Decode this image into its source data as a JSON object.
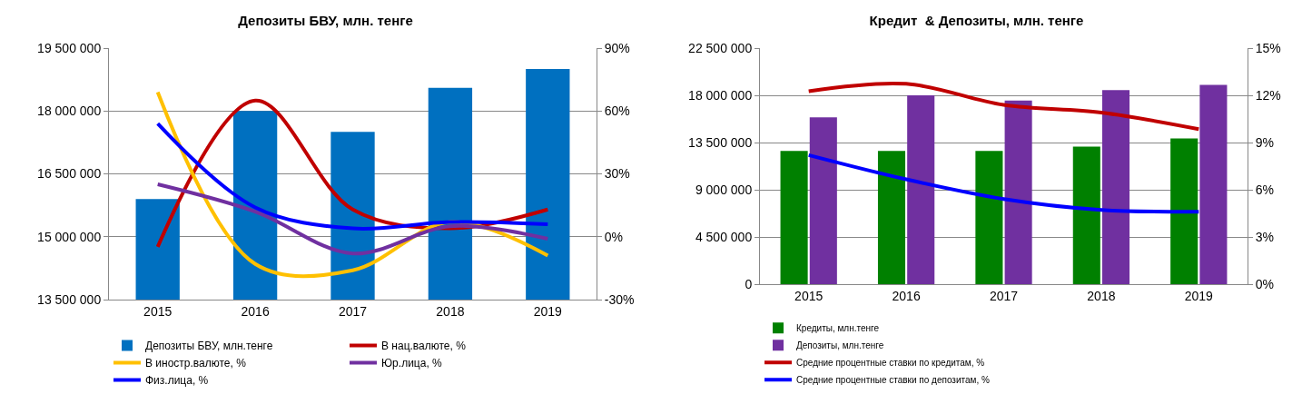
{
  "chart_data": [
    {
      "type": "bar",
      "title": "Депозиты БВУ, млн. тенге",
      "categories": [
        "2015",
        "2016",
        "2017",
        "2018",
        "2019"
      ],
      "ylim": [
        13500000,
        19500000
      ],
      "yticks": [
        {
          "value": 13500000,
          "label": "13 500 000"
        },
        {
          "value": 15000000,
          "label": "15 000 000"
        },
        {
          "value": 16500000,
          "label": "16 500 000"
        },
        {
          "value": 18000000,
          "label": "18 000 000"
        },
        {
          "value": 19500000,
          "label": "19 500 000"
        }
      ],
      "y2lim": [
        -30,
        90
      ],
      "y2ticks": [
        {
          "value": -30,
          "label": "-30%"
        },
        {
          "value": 0,
          "label": "0%"
        },
        {
          "value": 30,
          "label": "30%"
        },
        {
          "value": 60,
          "label": "60%"
        },
        {
          "value": 90,
          "label": "90%"
        }
      ],
      "grid": "y",
      "legend": "bottom",
      "marker": "none",
      "line_style": "solid",
      "series": [
        {
          "name": "Депозиты БВУ, млн.тенге",
          "color": "#0070c0",
          "values": [
            15900000,
            18000000,
            17500000,
            18550000,
            19000000
          ]
        },
        {
          "name": "В нац.валюте, %",
          "type": "line",
          "axis": "y2",
          "color": "#c00000",
          "values": [
            -4.8,
            65,
            13,
            4,
            13
          ]
        },
        {
          "name": "В иностр.валюте, %",
          "type": "line",
          "axis": "y2",
          "color": "#ffc000",
          "values": [
            69,
            -13,
            -16,
            7,
            -9
          ]
        },
        {
          "name": "Юр.лица, %",
          "type": "line",
          "axis": "y2",
          "color": "#7030a0",
          "values": [
            25,
            12,
            -8,
            5,
            -1
          ]
        },
        {
          "name": "Физ.лица, %",
          "type": "line",
          "axis": "y2",
          "color": "#0000ff",
          "values": [
            54,
            14,
            4,
            7,
            6
          ]
        }
      ]
    },
    {
      "type": "bar",
      "title": "Кредит  & Депозиты, млн. тенге",
      "categories": [
        "2015",
        "2016",
        "2017",
        "2018",
        "2019"
      ],
      "ylim": [
        0,
        22500000
      ],
      "yticks": [
        {
          "value": 0,
          "label": "0"
        },
        {
          "value": 4500000,
          "label": "4 500 000"
        },
        {
          "value": 9000000,
          "label": "9 000 000"
        },
        {
          "value": 13500000,
          "label": "13 500 000"
        },
        {
          "value": 18000000,
          "label": "18 000 000"
        },
        {
          "value": 22500000,
          "label": "22 500 000"
        }
      ],
      "y2lim": [
        0,
        15
      ],
      "y2ticks": [
        {
          "value": 0,
          "label": "0%"
        },
        {
          "value": 3,
          "label": "3%"
        },
        {
          "value": 6,
          "label": "6%"
        },
        {
          "value": 9,
          "label": "9%"
        },
        {
          "value": 12,
          "label": "12%"
        },
        {
          "value": 15,
          "label": "15%"
        }
      ],
      "grid": "y",
      "legend": "bottom",
      "marker": "none",
      "line_style": "solid",
      "series": [
        {
          "name": "Кредиты, млн.тенге",
          "color": "#008000",
          "values": [
            12700000,
            12700000,
            12700000,
            13100000,
            13900000
          ]
        },
        {
          "name": "Депозиты, млн.тенге",
          "color": "#7030a0",
          "values": [
            15900000,
            18000000,
            17500000,
            18500000,
            19000000
          ]
        },
        {
          "name": "Средние процентные ставки по кредитам, %",
          "type": "line",
          "axis": "y2",
          "color": "#c00000",
          "values": [
            12.26,
            12.73,
            11.39,
            10.9,
            9.85
          ]
        },
        {
          "name": "Средние процентные ставки по депозитам, %",
          "type": "line",
          "axis": "y2",
          "color": "#0000ff",
          "values": [
            8.2,
            6.66,
            5.41,
            4.72,
            4.6
          ]
        }
      ]
    }
  ]
}
